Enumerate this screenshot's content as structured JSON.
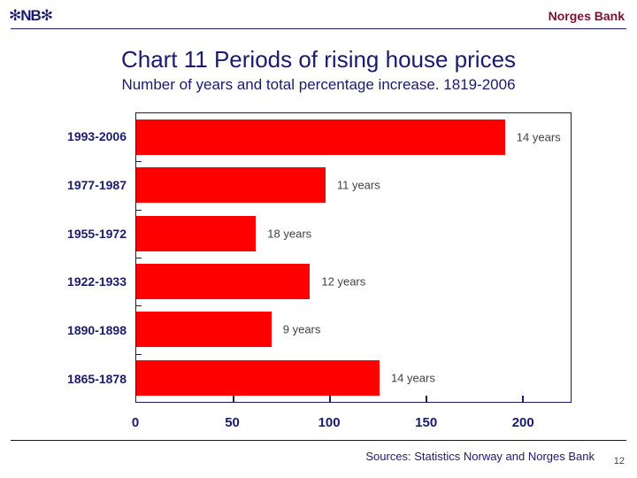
{
  "header": {
    "logo": "✻NB✻",
    "brand": "Norges Bank"
  },
  "title": "Chart 11 Periods of rising house prices",
  "subtitle": "Number of years and total percentage increase. 1819-2006",
  "chart_data": {
    "type": "bar",
    "orientation": "horizontal",
    "title": "Chart 11 Periods of rising house prices",
    "subtitle": "Number of years and total percentage increase. 1819-2006",
    "categories": [
      "1993-2006",
      "1977-1987",
      "1955-1972",
      "1922-1933",
      "1890-1898",
      "1865-1878"
    ],
    "values": [
      191,
      98,
      62,
      90,
      70,
      126
    ],
    "bar_labels": [
      "14 years",
      "11 years",
      "18 years",
      "12 years",
      "9 years",
      "14 years"
    ],
    "xlabel": "",
    "ylabel": "",
    "xlim": [
      0,
      225
    ],
    "xticks": [
      0,
      50,
      100,
      150,
      200
    ],
    "grid": false,
    "legend": false,
    "bar_color": "#ff0000"
  },
  "footer": {
    "sources": "Sources: Statistics Norway and Norges Bank",
    "page_number": "12"
  },
  "colors": {
    "navy": "#1b1b6e",
    "maroon": "#7b1230",
    "bar_red": "#ff0000",
    "value_label_gray": "#404048"
  }
}
